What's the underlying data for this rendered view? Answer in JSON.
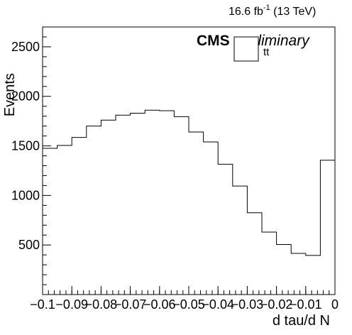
{
  "header": {
    "lumi_value": "16.6 fb",
    "lumi_exp": "-1",
    "energy": " (13 TeV)",
    "cms": "CMS",
    "preliminary": "preliminary"
  },
  "chart_data": {
    "type": "histogram",
    "xlabel": "d tau/d N",
    "ylabel": "Events",
    "xlim": [
      -0.1,
      0.0
    ],
    "ylim": [
      0,
      2700
    ],
    "xticks": [
      -0.1,
      -0.09,
      -0.08,
      -0.07,
      -0.06,
      -0.05,
      -0.04,
      -0.03,
      -0.02,
      -0.01,
      0
    ],
    "xtick_labels": [
      "−0.1",
      "−0.09",
      "−0.08",
      "−0.07",
      "−0.06",
      "−0.05",
      "−0.04",
      "−0.03",
      "−0.02",
      "−0.01",
      "0"
    ],
    "yticks": [
      500,
      1000,
      1500,
      2000,
      2500
    ],
    "ytick_labels": [
      "500",
      "1000",
      "1500",
      "2000",
      "2500"
    ],
    "bin_edges": [
      -0.1,
      -0.095,
      -0.09,
      -0.085,
      -0.08,
      -0.075,
      -0.07,
      -0.065,
      -0.06,
      -0.055,
      -0.05,
      -0.045,
      -0.04,
      -0.035,
      -0.03,
      -0.025,
      -0.02,
      -0.015,
      -0.01,
      -0.005,
      0.0
    ],
    "series": [
      {
        "name": "tt",
        "values": [
          1475,
          1505,
          1585,
          1700,
          1760,
          1810,
          1830,
          1860,
          1855,
          1795,
          1640,
          1540,
          1315,
          1095,
          825,
          630,
          505,
          415,
          395,
          1355
        ]
      }
    ],
    "legend": {
      "entries": [
        "tt"
      ],
      "position": "top-right"
    },
    "grid": false
  }
}
